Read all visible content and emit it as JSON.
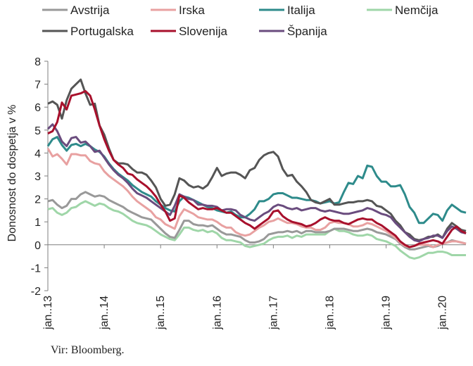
{
  "chart_data": {
    "type": "line",
    "title": "",
    "xlabel": "",
    "ylabel": "Donosnost do dospetja v %",
    "ylim": [
      -2,
      8
    ],
    "yticks": [
      "8",
      "7",
      "6",
      "5",
      "4",
      "3",
      "2",
      "1",
      "0",
      "-1",
      "-2"
    ],
    "x_start": "2013-01",
    "x_end": "2020-06",
    "xtick_labels": [
      "jan..13",
      "jan..14",
      "jan..15",
      "jan..16",
      "jan..17",
      "jan..18",
      "jan..19",
      "jan..20"
    ],
    "legend_position": "top",
    "series": [
      {
        "name": "Avstrija",
        "color": "#999999",
        "values": [
          1.9,
          1.95,
          1.75,
          1.6,
          1.7,
          2.0,
          2.0,
          2.2,
          2.3,
          2.2,
          2.1,
          2.15,
          2.1,
          1.95,
          1.85,
          1.75,
          1.65,
          1.5,
          1.4,
          1.3,
          1.2,
          1.15,
          1.1,
          0.9,
          0.7,
          0.5,
          0.35,
          0.3,
          0.65,
          1.05,
          1.05,
          0.9,
          0.85,
          0.85,
          0.8,
          0.85,
          0.7,
          0.55,
          0.45,
          0.45,
          0.4,
          0.35,
          0.2,
          0.1,
          0.1,
          0.15,
          0.25,
          0.45,
          0.5,
          0.55,
          0.55,
          0.6,
          0.55,
          0.6,
          0.5,
          0.6,
          0.6,
          0.55,
          0.55,
          0.55,
          0.6,
          0.7,
          0.7,
          0.7,
          0.65,
          0.6,
          0.6,
          0.65,
          0.7,
          0.65,
          0.55,
          0.5,
          0.45,
          0.35,
          0.25,
          0.05,
          -0.1,
          -0.2,
          -0.2,
          -0.15,
          -0.1,
          -0.05,
          -0.1,
          -0.05,
          0.05,
          0.1,
          0.2,
          0.15,
          0.1,
          0.05
        ]
      },
      {
        "name": "Irska",
        "color": "#e8a1a1",
        "values": [
          4.2,
          3.85,
          3.95,
          3.75,
          3.5,
          3.95,
          3.95,
          3.9,
          3.9,
          3.65,
          3.55,
          3.5,
          3.2,
          3.0,
          2.85,
          2.7,
          2.55,
          2.35,
          2.1,
          1.9,
          1.75,
          1.6,
          1.45,
          1.2,
          1.1,
          0.9,
          0.8,
          0.7,
          1.25,
          1.55,
          1.45,
          1.35,
          1.2,
          1.15,
          1.1,
          1.1,
          1.0,
          0.85,
          0.75,
          0.75,
          0.55,
          0.45,
          0.4,
          0.45,
          0.6,
          0.75,
          0.85,
          1.0,
          1.05,
          1.15,
          1.05,
          0.95,
          0.95,
          0.9,
          0.8,
          0.75,
          0.75,
          0.65,
          0.65,
          0.75,
          0.95,
          1.0,
          0.95,
          0.95,
          0.9,
          0.8,
          0.8,
          0.85,
          0.95,
          0.9,
          0.8,
          0.7,
          0.6,
          0.45,
          0.3,
          0.1,
          -0.05,
          -0.1,
          -0.05,
          0.0,
          0.0,
          0.0,
          -0.1,
          0.0,
          0.05,
          0.1,
          0.15,
          0.15,
          0.1,
          0.05
        ]
      },
      {
        "name": "Italija",
        "color": "#2e8b8b",
        "values": [
          4.3,
          4.6,
          4.7,
          4.35,
          4.1,
          4.35,
          4.4,
          4.3,
          4.4,
          4.3,
          4.15,
          4.05,
          3.85,
          3.55,
          3.3,
          3.1,
          2.95,
          2.8,
          2.6,
          2.45,
          2.3,
          2.2,
          2.1,
          1.9,
          1.75,
          1.6,
          1.5,
          1.45,
          1.9,
          2.1,
          2.05,
          1.95,
          1.85,
          1.75,
          1.65,
          1.6,
          1.5,
          1.45,
          1.4,
          1.45,
          1.3,
          1.2,
          1.2,
          1.35,
          1.55,
          1.9,
          1.9,
          2.0,
          2.2,
          2.25,
          2.25,
          2.15,
          2.05,
          2.05,
          2.0,
          1.95,
          1.95,
          1.9,
          1.8,
          1.85,
          1.9,
          1.8,
          1.85,
          2.3,
          2.7,
          2.65,
          3.0,
          2.9,
          3.45,
          3.4,
          3.0,
          2.75,
          2.75,
          2.55,
          2.55,
          2.6,
          2.2,
          1.65,
          1.4,
          0.95,
          0.95,
          1.15,
          1.35,
          1.3,
          1.05,
          1.5,
          1.75,
          1.6,
          1.45,
          1.4
        ]
      },
      {
        "name": "Nemčija",
        "color": "#9fd6a8",
        "values": [
          1.55,
          1.6,
          1.4,
          1.3,
          1.4,
          1.6,
          1.65,
          1.8,
          1.9,
          1.8,
          1.7,
          1.8,
          1.75,
          1.6,
          1.5,
          1.45,
          1.35,
          1.2,
          1.05,
          0.95,
          0.9,
          0.85,
          0.75,
          0.6,
          0.45,
          0.35,
          0.25,
          0.2,
          0.45,
          0.75,
          0.75,
          0.65,
          0.6,
          0.65,
          0.55,
          0.6,
          0.5,
          0.3,
          0.2,
          0.2,
          0.15,
          0.1,
          -0.05,
          -0.1,
          -0.05,
          0.0,
          0.05,
          0.2,
          0.3,
          0.35,
          0.35,
          0.4,
          0.3,
          0.4,
          0.35,
          0.45,
          0.45,
          0.45,
          0.45,
          0.45,
          0.6,
          0.7,
          0.6,
          0.6,
          0.55,
          0.45,
          0.4,
          0.4,
          0.45,
          0.4,
          0.25,
          0.2,
          0.15,
          0.05,
          -0.05,
          -0.25,
          -0.4,
          -0.55,
          -0.6,
          -0.55,
          -0.45,
          -0.35,
          -0.35,
          -0.3,
          -0.3,
          -0.35,
          -0.45,
          -0.45,
          -0.45,
          -0.45
        ]
      },
      {
        "name": "Portugalska",
        "color": "#555555",
        "values": [
          6.15,
          6.25,
          6.1,
          5.5,
          6.3,
          6.8,
          7.0,
          7.2,
          6.6,
          6.1,
          6.15,
          5.2,
          4.8,
          4.2,
          3.7,
          3.55,
          3.55,
          3.5,
          3.3,
          3.15,
          3.15,
          3.05,
          2.8,
          2.5,
          2.0,
          1.7,
          1.75,
          2.2,
          2.9,
          2.8,
          2.6,
          2.5,
          2.55,
          2.45,
          2.6,
          2.95,
          3.35,
          3.0,
          3.1,
          3.15,
          3.15,
          3.05,
          2.9,
          3.25,
          3.35,
          3.7,
          3.9,
          4.0,
          4.05,
          3.85,
          3.3,
          3.0,
          3.05,
          2.75,
          2.55,
          2.3,
          1.95,
          1.85,
          1.8,
          1.9,
          2.0,
          1.75,
          1.75,
          1.8,
          1.85,
          1.85,
          1.9,
          1.9,
          1.95,
          1.9,
          1.7,
          1.65,
          1.5,
          1.35,
          1.05,
          0.85,
          0.55,
          0.45,
          0.25,
          0.2,
          0.25,
          0.35,
          0.35,
          0.45,
          0.3,
          0.7,
          0.95,
          0.8,
          0.65,
          0.6
        ]
      },
      {
        "name": "Slovenija",
        "color": "#a8102c",
        "values": [
          4.85,
          4.95,
          5.35,
          6.2,
          5.9,
          6.5,
          6.55,
          6.6,
          6.7,
          6.5,
          5.9,
          5.2,
          4.6,
          4.1,
          3.7,
          3.5,
          3.35,
          3.1,
          3.05,
          2.85,
          2.7,
          2.55,
          2.35,
          2.1,
          1.75,
          1.45,
          1.05,
          1.15,
          2.15,
          2.05,
          1.85,
          1.7,
          1.55,
          1.6,
          1.55,
          1.55,
          1.6,
          1.5,
          1.4,
          1.4,
          1.25,
          1.1,
          0.95,
          0.85,
          0.7,
          0.85,
          1.0,
          1.15,
          1.45,
          1.5,
          1.25,
          1.1,
          1.0,
          0.95,
          0.9,
          0.8,
          0.85,
          0.95,
          1.1,
          1.2,
          1.1,
          1.05,
          1.05,
          0.95,
          0.9,
          1.0,
          1.1,
          1.15,
          1.1,
          1.1,
          0.95,
          0.85,
          0.7,
          0.55,
          0.4,
          0.15,
          0.0,
          -0.1,
          -0.05,
          0.05,
          0.1,
          0.15,
          0.2,
          0.15,
          0.05,
          0.35,
          0.65,
          0.8,
          0.6,
          0.5
        ]
      },
      {
        "name": "Španija",
        "color": "#6a4c7e",
        "values": [
          5.05,
          5.25,
          4.95,
          4.5,
          4.3,
          4.65,
          4.7,
          4.45,
          4.5,
          4.3,
          4.05,
          4.1,
          3.8,
          3.5,
          3.25,
          3.05,
          2.9,
          2.7,
          2.45,
          2.25,
          2.15,
          2.05,
          1.9,
          1.75,
          1.6,
          1.45,
          1.3,
          1.7,
          2.2,
          2.1,
          2.0,
          1.95,
          1.75,
          1.75,
          1.7,
          1.7,
          1.65,
          1.5,
          1.55,
          1.55,
          1.5,
          1.3,
          1.2,
          1.1,
          1.05,
          1.2,
          1.35,
          1.45,
          1.65,
          1.75,
          1.7,
          1.6,
          1.55,
          1.6,
          1.5,
          1.55,
          1.6,
          1.6,
          1.5,
          1.45,
          1.5,
          1.45,
          1.4,
          1.35,
          1.35,
          1.4,
          1.45,
          1.5,
          1.6,
          1.55,
          1.45,
          1.35,
          1.3,
          1.2,
          0.95,
          0.75,
          0.55,
          0.35,
          0.2,
          0.15,
          0.25,
          0.3,
          0.4,
          0.4,
          0.3,
          0.6,
          0.8,
          0.7,
          0.55,
          0.5
        ]
      }
    ]
  },
  "source": "Vir: Bloomberg."
}
